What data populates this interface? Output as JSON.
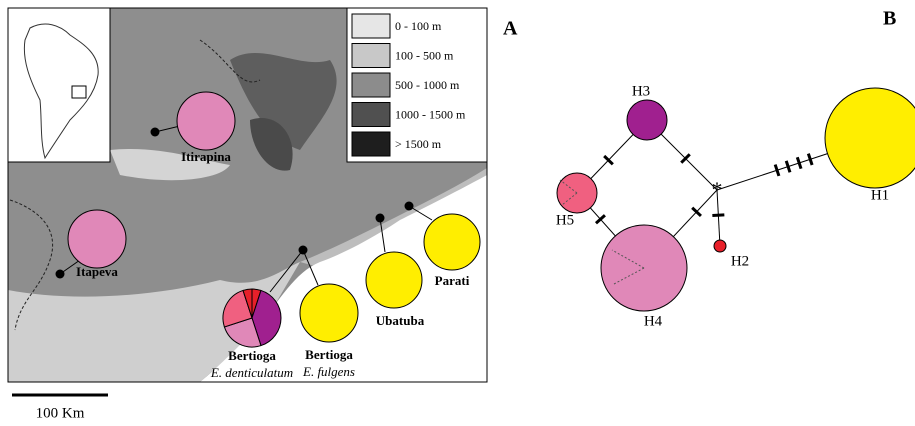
{
  "panel_a": {
    "label": "A",
    "legend": [
      "0 - 100 m",
      "100 - 500 m",
      "500 - 1000 m",
      "1000 - 1500 m",
      "> 1500 m"
    ],
    "locations": [
      {
        "name": "Itirapina"
      },
      {
        "name": "Itapeva"
      },
      {
        "name": "Bertioga",
        "species": "E. denticulatum"
      },
      {
        "name": "Bertioga",
        "species": "E. fulgens"
      },
      {
        "name": "Ubatuba"
      },
      {
        "name": "Parati"
      }
    ],
    "scale_bar": "100 Km"
  },
  "panel_b": {
    "label": "B",
    "haplotypes": [
      "H1",
      "H2",
      "H3",
      "H4",
      "H5"
    ]
  }
}
